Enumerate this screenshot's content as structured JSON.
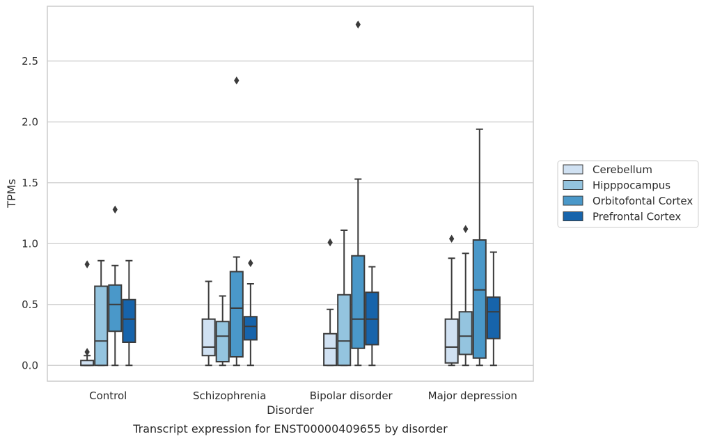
{
  "chart_data": {
    "type": "box",
    "title": "",
    "caption": "Transcript expression for ENST00000409655 by disorder",
    "xlabel": "Disorder",
    "ylabel": "TPMs",
    "ylim": [
      -0.13,
      2.95
    ],
    "yticks": [
      "0.0",
      "0.5",
      "1.0",
      "1.5",
      "2.0",
      "2.5"
    ],
    "ytick_values": [
      0.0,
      0.5,
      1.0,
      1.5,
      2.0,
      2.5
    ],
    "grid": "horizontal",
    "legend_position": "right",
    "categories": [
      "Control",
      "Schizophrenia",
      "Bipolar disorder",
      "Major depression"
    ],
    "series": [
      {
        "name": "Cerebellum",
        "color": "#d0e1f2",
        "boxes": [
          {
            "min": 0.0,
            "q1": 0.0,
            "median": 0.0,
            "q3": 0.04,
            "max": 0.08,
            "outliers": [
              0.11,
              0.83
            ]
          },
          {
            "min": 0.0,
            "q1": 0.08,
            "median": 0.15,
            "q3": 0.38,
            "max": 0.69,
            "outliers": []
          },
          {
            "min": 0.0,
            "q1": 0.0,
            "median": 0.14,
            "q3": 0.26,
            "max": 0.46,
            "outliers": [
              1.01
            ]
          },
          {
            "min": 0.0,
            "q1": 0.02,
            "median": 0.15,
            "q3": 0.38,
            "max": 0.88,
            "outliers": [
              1.04
            ]
          }
        ]
      },
      {
        "name": "Hipppocampus",
        "color": "#94c4df",
        "boxes": [
          {
            "min": 0.0,
            "q1": 0.0,
            "median": 0.2,
            "q3": 0.65,
            "max": 0.86,
            "outliers": []
          },
          {
            "min": 0.0,
            "q1": 0.03,
            "median": 0.24,
            "q3": 0.36,
            "max": 0.57,
            "outliers": []
          },
          {
            "min": 0.0,
            "q1": 0.0,
            "median": 0.2,
            "q3": 0.58,
            "max": 1.11,
            "outliers": []
          },
          {
            "min": 0.0,
            "q1": 0.09,
            "median": 0.24,
            "q3": 0.44,
            "max": 0.92,
            "outliers": [
              1.12
            ]
          }
        ]
      },
      {
        "name": "Orbitofontal Cortex",
        "color": "#4a98c9",
        "boxes": [
          {
            "min": 0.0,
            "q1": 0.28,
            "median": 0.5,
            "q3": 0.66,
            "max": 0.82,
            "outliers": [
              1.28
            ]
          },
          {
            "min": 0.0,
            "q1": 0.07,
            "median": 0.47,
            "q3": 0.77,
            "max": 0.89,
            "outliers": [
              2.34
            ]
          },
          {
            "min": 0.0,
            "q1": 0.14,
            "median": 0.38,
            "q3": 0.9,
            "max": 1.53,
            "outliers": [
              2.8
            ]
          },
          {
            "min": 0.0,
            "q1": 0.06,
            "median": 0.62,
            "q3": 1.03,
            "max": 1.94,
            "outliers": []
          }
        ]
      },
      {
        "name": "Prefrontal Cortex",
        "color": "#1764ab",
        "boxes": [
          {
            "min": 0.0,
            "q1": 0.19,
            "median": 0.38,
            "q3": 0.54,
            "max": 0.86,
            "outliers": []
          },
          {
            "min": 0.0,
            "q1": 0.21,
            "median": 0.32,
            "q3": 0.4,
            "max": 0.67,
            "outliers": [
              0.84
            ]
          },
          {
            "min": 0.0,
            "q1": 0.17,
            "median": 0.38,
            "q3": 0.6,
            "max": 0.81,
            "outliers": []
          },
          {
            "min": 0.0,
            "q1": 0.22,
            "median": 0.44,
            "q3": 0.56,
            "max": 0.93,
            "outliers": []
          }
        ]
      }
    ]
  }
}
